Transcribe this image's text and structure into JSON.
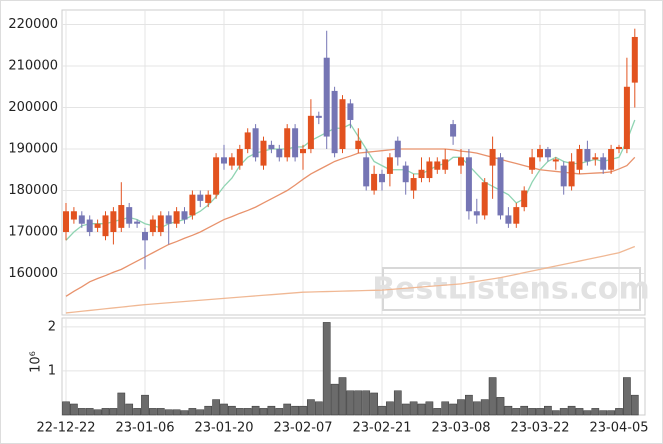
{
  "chart_data": {
    "type": "candlestick",
    "watermark": "BestListens.com",
    "categories": [
      "22-12-22",
      null,
      null,
      null,
      null,
      null,
      null,
      null,
      null,
      null,
      "23-01-06",
      null,
      null,
      null,
      null,
      null,
      null,
      null,
      null,
      null,
      "23-01-20",
      null,
      null,
      null,
      null,
      null,
      null,
      null,
      null,
      null,
      "23-02-07",
      null,
      null,
      null,
      null,
      null,
      null,
      null,
      null,
      null,
      "23-02-21",
      null,
      null,
      null,
      null,
      null,
      null,
      null,
      null,
      null,
      "23-03-08",
      null,
      null,
      null,
      null,
      null,
      null,
      null,
      null,
      null,
      "23-03-22",
      null,
      null,
      null,
      null,
      null,
      null,
      null,
      null,
      null,
      "23-04-05",
      null,
      null
    ],
    "open": [
      170000,
      173000,
      174000,
      173000,
      171000,
      169000,
      170000,
      171000,
      176000,
      172500,
      170000,
      170000,
      170000,
      174000,
      172000,
      175000,
      174000,
      179000,
      177000,
      179000,
      188000,
      186000,
      186000,
      190000,
      195000,
      186000,
      191000,
      190000,
      188000,
      195000,
      189000,
      190000,
      198000,
      212000,
      204000,
      190000,
      201000,
      190000,
      188000,
      180000,
      184000,
      184000,
      192000,
      186000,
      180000,
      183000,
      183000,
      185000,
      185000,
      196000,
      186000,
      188000,
      175000,
      174000,
      186000,
      188000,
      174000,
      172000,
      176000,
      185000,
      188000,
      190000,
      187000,
      186000,
      181000,
      185000,
      190000,
      187500,
      188000,
      185000,
      190000,
      190000,
      206000
    ],
    "high": [
      177000,
      176000,
      175000,
      174000,
      173000,
      175000,
      176000,
      182000,
      177000,
      173000,
      171000,
      174000,
      175000,
      175000,
      176000,
      176000,
      180000,
      180000,
      180000,
      189000,
      191000,
      189000,
      191000,
      195000,
      196000,
      193000,
      192000,
      191000,
      196000,
      196000,
      191000,
      202000,
      199000,
      218500,
      205000,
      203000,
      202000,
      195000,
      190000,
      186000,
      185000,
      189000,
      193000,
      187000,
      184000,
      188000,
      188000,
      188000,
      190000,
      197000,
      190000,
      190000,
      178000,
      183000,
      193000,
      189000,
      176000,
      177000,
      181000,
      190000,
      191000,
      190500,
      188000,
      187000,
      189000,
      191000,
      192000,
      189000,
      189000,
      191000,
      191000,
      212000,
      219000
    ],
    "low": [
      168000,
      172000,
      171000,
      169000,
      170000,
      168000,
      167000,
      170000,
      171000,
      171000,
      161000,
      169000,
      169000,
      167000,
      171000,
      172000,
      173000,
      176000,
      176000,
      178000,
      185000,
      185000,
      185000,
      189000,
      187000,
      185000,
      189000,
      187000,
      187000,
      187000,
      185000,
      189000,
      196000,
      190000,
      188000,
      189000,
      195000,
      189000,
      180000,
      179000,
      180000,
      181000,
      186000,
      179000,
      178000,
      182000,
      182000,
      184000,
      184000,
      191000,
      184000,
      173000,
      172000,
      173000,
      178000,
      173000,
      171000,
      171000,
      175000,
      184000,
      187000,
      187000,
      185000,
      179000,
      180000,
      184000,
      186000,
      186000,
      184000,
      184000,
      189000,
      189000,
      200000
    ],
    "close": [
      175000,
      175000,
      172000,
      170000,
      172000,
      174000,
      175000,
      176500,
      172000,
      172000,
      168000,
      173000,
      174000,
      172000,
      175000,
      173000,
      179000,
      177500,
      179000,
      188000,
      186500,
      188000,
      190000,
      194000,
      188000,
      192000,
      190000,
      188000,
      195000,
      188000,
      190000,
      198000,
      197500,
      193000,
      189000,
      202000,
      197000,
      192000,
      181000,
      184000,
      182000,
      188000,
      188000,
      182000,
      183000,
      185000,
      187000,
      187000,
      187500,
      193000,
      188000,
      175000,
      174000,
      182000,
      190000,
      174000,
      172000,
      176000,
      180000,
      188000,
      190000,
      188000,
      187500,
      181000,
      187000,
      190000,
      187000,
      188000,
      185000,
      190000,
      190500,
      205000,
      217000
    ],
    "up_color": "#e2521f",
    "down_color": "#7575b4",
    "moving_averages": [
      {
        "color": "#8fd4b2",
        "values": [
          168000,
          170000,
          171500,
          172000,
          172000,
          172000,
          172500,
          173000,
          173500,
          173000,
          172000,
          171500,
          171000,
          172000,
          172500,
          173000,
          174000,
          175000,
          176500,
          178500,
          181000,
          183000,
          186000,
          188000,
          189000,
          189500,
          190000,
          190000,
          190000,
          190500,
          190500,
          192000,
          193000,
          194000,
          195000,
          195000,
          196000,
          193000,
          190000,
          187000,
          186000,
          185000,
          185000,
          185000,
          184000,
          184000,
          185000,
          186000,
          186500,
          188000,
          188000,
          186000,
          184000,
          182000,
          181000,
          180000,
          179000,
          177000,
          178000,
          182000,
          185000,
          187000,
          188000,
          187000,
          186500,
          186500,
          187000,
          187500,
          187000,
          187500,
          188000,
          192000,
          197000
        ]
      },
      {
        "color": "#e8926c",
        "values": [
          154500,
          155700,
          156800,
          158000,
          158800,
          159500,
          160300,
          161000,
          162000,
          163000,
          164000,
          165000,
          166000,
          167000,
          167700,
          168500,
          169200,
          170000,
          171000,
          172000,
          173000,
          173700,
          174500,
          175200,
          176000,
          177000,
          178000,
          179000,
          180000,
          181300,
          182700,
          184000,
          185000,
          186000,
          187000,
          187700,
          188300,
          189000,
          189200,
          189400,
          189600,
          189800,
          190000,
          190000,
          190000,
          190000,
          190000,
          190000,
          190000,
          189800,
          189500,
          189300,
          189000,
          188500,
          188000,
          187500,
          187000,
          186500,
          186000,
          185500,
          185000,
          184800,
          184600,
          184400,
          184200,
          184000,
          184100,
          184200,
          184300,
          184500,
          185200,
          186000,
          188000
        ]
      },
      {
        "color": "#f0b894",
        "values": [
          150500,
          150700,
          150900,
          151100,
          151300,
          151500,
          151700,
          151900,
          152100,
          152300,
          152500,
          152650,
          152800,
          152950,
          153100,
          153250,
          153400,
          153550,
          153700,
          153850,
          154000,
          154150,
          154300,
          154450,
          154600,
          154750,
          154900,
          155050,
          155200,
          155350,
          155500,
          155550,
          155600,
          155650,
          155700,
          155750,
          155800,
          155850,
          155900,
          155950,
          156000,
          156150,
          156300,
          156450,
          156600,
          156750,
          156900,
          157050,
          157200,
          157350,
          157500,
          157800,
          158100,
          158400,
          158700,
          159000,
          159400,
          159800,
          160200,
          160600,
          161000,
          161400,
          161800,
          162200,
          162600,
          163000,
          163400,
          163800,
          164200,
          164600,
          165000,
          165750,
          166500
        ]
      }
    ],
    "ylim": [
      150000,
      223500
    ],
    "yticks": [
      160000,
      170000,
      180000,
      190000,
      200000,
      210000,
      220000
    ],
    "grid": true,
    "volume": {
      "type": "bar",
      "color": "#6b6b6b",
      "offset_label": "10⁶",
      "values": [
        0.3,
        0.25,
        0.15,
        0.15,
        0.12,
        0.15,
        0.15,
        0.5,
        0.25,
        0.15,
        0.45,
        0.15,
        0.15,
        0.12,
        0.12,
        0.1,
        0.15,
        0.12,
        0.2,
        0.35,
        0.25,
        0.2,
        0.15,
        0.15,
        0.2,
        0.15,
        0.2,
        0.15,
        0.25,
        0.2,
        0.2,
        0.35,
        0.3,
        2.1,
        0.7,
        0.85,
        0.55,
        0.55,
        0.55,
        0.5,
        0.2,
        0.3,
        0.55,
        0.25,
        0.3,
        0.25,
        0.3,
        0.15,
        0.3,
        0.25,
        0.35,
        0.45,
        0.3,
        0.35,
        0.85,
        0.4,
        0.2,
        0.15,
        0.2,
        0.15,
        0.15,
        0.2,
        0.1,
        0.15,
        0.2,
        0.15,
        0.1,
        0.15,
        0.1,
        0.1,
        0.15,
        0.85,
        0.45
      ],
      "ylim": [
        0,
        2.2
      ],
      "yticks": [
        1,
        2
      ]
    }
  }
}
